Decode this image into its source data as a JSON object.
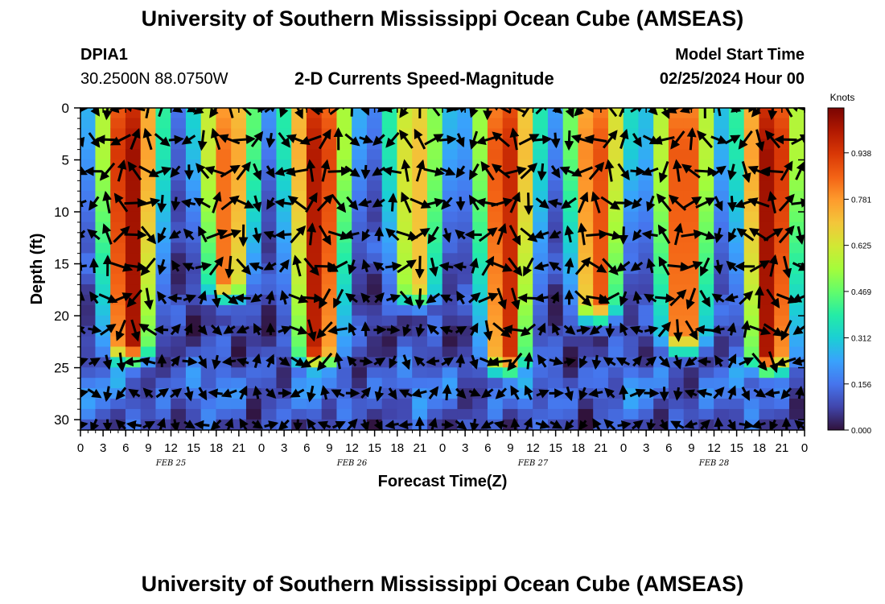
{
  "header": {
    "title": "University of Southern Mississippi Ocean Cube (AMSEAS)",
    "station_id": "DPIA1",
    "station_coords": "30.2500N  88.0750W",
    "subtitle": "2-D Currents Speed-Magnitude",
    "model_start_label": "Model Start Time",
    "model_start_value": "02/25/2024 Hour 00"
  },
  "footer": {
    "title": "University of Southern Mississippi Ocean Cube (AMSEAS)"
  },
  "colors": {
    "colormap": [
      "#30123b",
      "#4145ab",
      "#4675ed",
      "#39a2fc",
      "#1bcfd4",
      "#24eca6",
      "#61fc6c",
      "#a4fc3b",
      "#d1e834",
      "#f3c63a",
      "#fe9b2d",
      "#f36315",
      "#d93806",
      "#b11901",
      "#7a0402"
    ]
  },
  "chart_data": {
    "type": "heatmap",
    "title": "2-D Currents Speed-Magnitude",
    "xlabel": "Forecast Time(Z)",
    "ylabel": "Depth (ft)",
    "x_unit": "hours from model start",
    "xlim": [
      0,
      96
    ],
    "ylim": [
      0,
      31
    ],
    "y_inverted": true,
    "x_ticks": [
      0,
      3,
      6,
      9,
      12,
      15,
      18,
      21,
      24,
      27,
      30,
      33,
      36,
      39,
      42,
      45,
      48,
      51,
      54,
      57,
      60,
      63,
      66,
      69,
      72,
      75,
      78,
      81,
      84,
      87,
      90,
      93,
      96
    ],
    "x_tick_labels": [
      "0",
      "3",
      "6",
      "9",
      "12",
      "15",
      "18",
      "21",
      "0",
      "3",
      "6",
      "9",
      "12",
      "15",
      "18",
      "21",
      "0",
      "3",
      "6",
      "9",
      "12",
      "15",
      "18",
      "21",
      "0",
      "3",
      "6",
      "9",
      "12",
      "15",
      "18",
      "21",
      "0"
    ],
    "day_labels": [
      {
        "hour": 12,
        "label": "FEB 25"
      },
      {
        "hour": 36,
        "label": "FEB 26"
      },
      {
        "hour": 60,
        "label": "FEB 27"
      },
      {
        "hour": 84,
        "label": "FEB 28"
      }
    ],
    "y_ticks": [
      0,
      5,
      10,
      15,
      20,
      25,
      30
    ],
    "y_tick_labels": [
      "0",
      "5",
      "10",
      "15",
      "20",
      "25",
      "30"
    ],
    "colorbar": {
      "label": "Knots",
      "min": 0.0,
      "max": 1.09,
      "ticks": [
        0.0,
        0.156,
        0.312,
        0.469,
        0.625,
        0.781,
        0.938
      ],
      "tick_labels": [
        "0.000",
        "0.156",
        "0.312",
        "0.469",
        "0.625",
        "0.781",
        "0.938"
      ]
    },
    "speed_maxima": [
      {
        "hour": 6.5,
        "peak": 1.05,
        "bottom_depth": 22.5
      },
      {
        "hour": 19.5,
        "peak": 0.85,
        "bottom_depth": 16.5
      },
      {
        "hour": 31.5,
        "peak": 1.02,
        "bottom_depth": 23
      },
      {
        "hour": 44.5,
        "peak": 0.72,
        "bottom_depth": 17
      },
      {
        "hour": 56.5,
        "peak": 0.98,
        "bottom_depth": 23.5
      },
      {
        "hour": 68.5,
        "peak": 0.9,
        "bottom_depth": 18.5
      },
      {
        "hour": 80,
        "peak": 0.92,
        "bottom_depth": 21.5
      },
      {
        "hour": 91.5,
        "peak": 1.05,
        "bottom_depth": 23.5
      }
    ],
    "vector_grid": {
      "hour_step": 1.8,
      "depth_step": 3.05,
      "note": "arrows show current direction, length scaled by speed"
    }
  }
}
